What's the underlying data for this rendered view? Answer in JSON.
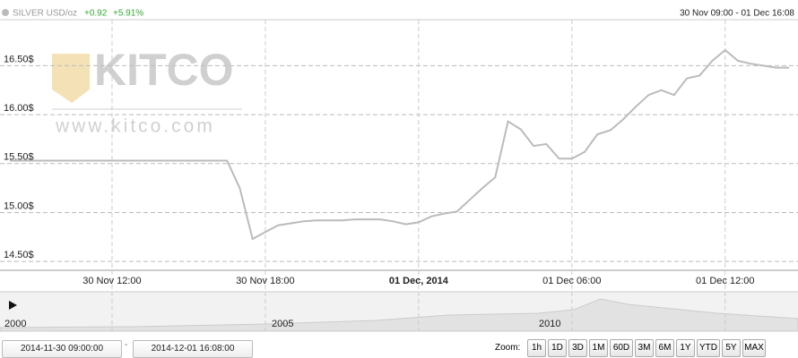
{
  "ui": {
    "instrument": "SILVER USD/oz",
    "change": "+0.92",
    "change_pct": "+5.91%",
    "range_label": "30 Nov 09:00 - 01 Dec 16:08",
    "logo": "KITCO",
    "logo_url": "www.kitco.com",
    "navigator_years": [
      "2000",
      "2005",
      "2010"
    ],
    "from": "2014-11-30 09:00:00",
    "separator": "-",
    "to": "2014-12-01 16:08:00",
    "zoom_label": "Zoom:",
    "zoom_buttons": [
      "1h",
      "1D",
      "3D",
      "1M",
      "60D",
      "3M",
      "6M",
      "1Y",
      "YTD",
      "5Y",
      "MAX"
    ]
  },
  "chart_data": {
    "type": "line",
    "color": "#bbbbbb",
    "grid": true,
    "categories": [
      null,
      null,
      null,
      null,
      null,
      null,
      null,
      null,
      "30 Nov 12:00",
      null,
      null,
      null,
      null,
      null,
      null,
      null,
      null,
      null,
      null,
      null,
      "30 Nov 18:00",
      null,
      null,
      null,
      null,
      null,
      null,
      null,
      null,
      null,
      null,
      null,
      "01 Dec, 2014",
      null,
      null,
      null,
      null,
      null,
      null,
      null,
      null,
      null,
      null,
      null,
      "01 Dec 06:00",
      null,
      null,
      null,
      null,
      null,
      null,
      null,
      null,
      null,
      null,
      null,
      "01 Dec 12:00",
      null,
      null,
      null,
      null,
      null
    ],
    "values": [
      15.53,
      15.53,
      15.53,
      15.53,
      15.53,
      15.53,
      15.53,
      15.53,
      15.53,
      15.53,
      15.53,
      15.53,
      15.53,
      15.53,
      15.53,
      15.53,
      15.53,
      15.53,
      15.25,
      14.73,
      14.8,
      14.87,
      14.89,
      14.91,
      14.92,
      14.92,
      14.92,
      14.93,
      14.93,
      14.93,
      14.91,
      14.88,
      14.9,
      14.96,
      14.99,
      15.01,
      15.13,
      15.25,
      15.36,
      15.93,
      15.85,
      15.68,
      15.7,
      15.55,
      15.55,
      15.62,
      15.8,
      15.84,
      15.95,
      16.08,
      16.2,
      16.25,
      16.2,
      16.37,
      16.4,
      16.55,
      16.66,
      16.55,
      16.52,
      16.5,
      16.48,
      16.48
    ],
    "ylim": [
      14.41,
      16.97
    ],
    "yticks": [
      {
        "value": 14.5,
        "label": "14.50$"
      },
      {
        "value": 15,
        "label": "15.00$"
      },
      {
        "value": 15.5,
        "label": "15.50$"
      },
      {
        "value": 16,
        "label": "16.00$"
      },
      {
        "value": 16.5,
        "label": "16.50$"
      }
    ]
  }
}
